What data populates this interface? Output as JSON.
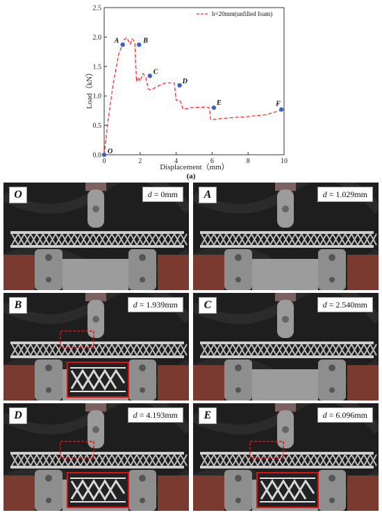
{
  "chart_data": {
    "type": "line",
    "xlabel": "Displacement（mm）",
    "ylabel": "Load（kN）",
    "xlim": [
      0,
      10
    ],
    "ylim": [
      0,
      2.5
    ],
    "xticks": [
      "0",
      "2",
      "4",
      "6",
      "8",
      "10"
    ],
    "yticks": [
      "0.0",
      "0.5",
      "1.0",
      "1.5",
      "2.0",
      "2.5"
    ],
    "grid": false,
    "legend_position": "top-right",
    "series": [
      {
        "name": "h=20mm(unfilled foam)",
        "color": "#ff2a2a",
        "style": "dashed",
        "x": [
          0,
          0.2,
          0.5,
          0.8,
          1.0,
          1.1,
          1.25,
          1.45,
          1.55,
          1.7,
          1.8,
          1.9,
          2.0,
          2.15,
          2.3,
          2.45,
          2.6,
          3.0,
          3.4,
          3.9,
          4.0,
          4.2,
          4.4,
          4.8,
          5.5,
          5.85,
          5.92,
          6.05,
          7.0,
          8.0,
          9.0,
          9.85
        ],
        "y": [
          0.0,
          0.55,
          1.2,
          1.7,
          1.87,
          1.95,
          1.99,
          1.88,
          1.97,
          1.92,
          1.24,
          1.32,
          1.25,
          1.38,
          1.33,
          1.12,
          1.1,
          1.17,
          1.22,
          1.22,
          0.93,
          0.93,
          0.77,
          0.8,
          0.81,
          0.8,
          0.6,
          0.6,
          0.63,
          0.65,
          0.68,
          0.76
        ]
      }
    ],
    "points": [
      {
        "label": "O",
        "x": 0.0,
        "y": 0.0
      },
      {
        "label": "A",
        "x": 1.029,
        "y": 1.87
      },
      {
        "label": "B",
        "x": 1.939,
        "y": 1.87
      },
      {
        "label": "C",
        "x": 2.54,
        "y": 1.34
      },
      {
        "label": "D",
        "x": 4.193,
        "y": 1.18
      },
      {
        "label": "E",
        "x": 6.096,
        "y": 0.8
      },
      {
        "label": "F",
        "x": 9.85,
        "y": 0.77
      }
    ]
  },
  "caption": "(a)",
  "panels": [
    {
      "letter": "O",
      "d_var": "d",
      "d_value": " = 0mm",
      "detail": false
    },
    {
      "letter": "A",
      "d_var": "d",
      "d_value": " = 1.029mm",
      "detail": false
    },
    {
      "letter": "B",
      "d_var": "d",
      "d_value": " = 1.939mm",
      "detail": true
    },
    {
      "letter": "C",
      "d_var": "d",
      "d_value": " = 2.540mm",
      "detail": false
    },
    {
      "letter": "D",
      "d_var": "d",
      "d_value": " = 4.193mm",
      "detail": true
    },
    {
      "letter": "E",
      "d_var": "d",
      "d_value": " = 6.096mm",
      "detail": true
    }
  ],
  "colors": {
    "line": "#ff2a2a",
    "marker": "#3a62c8",
    "highlight": "#e01010"
  }
}
